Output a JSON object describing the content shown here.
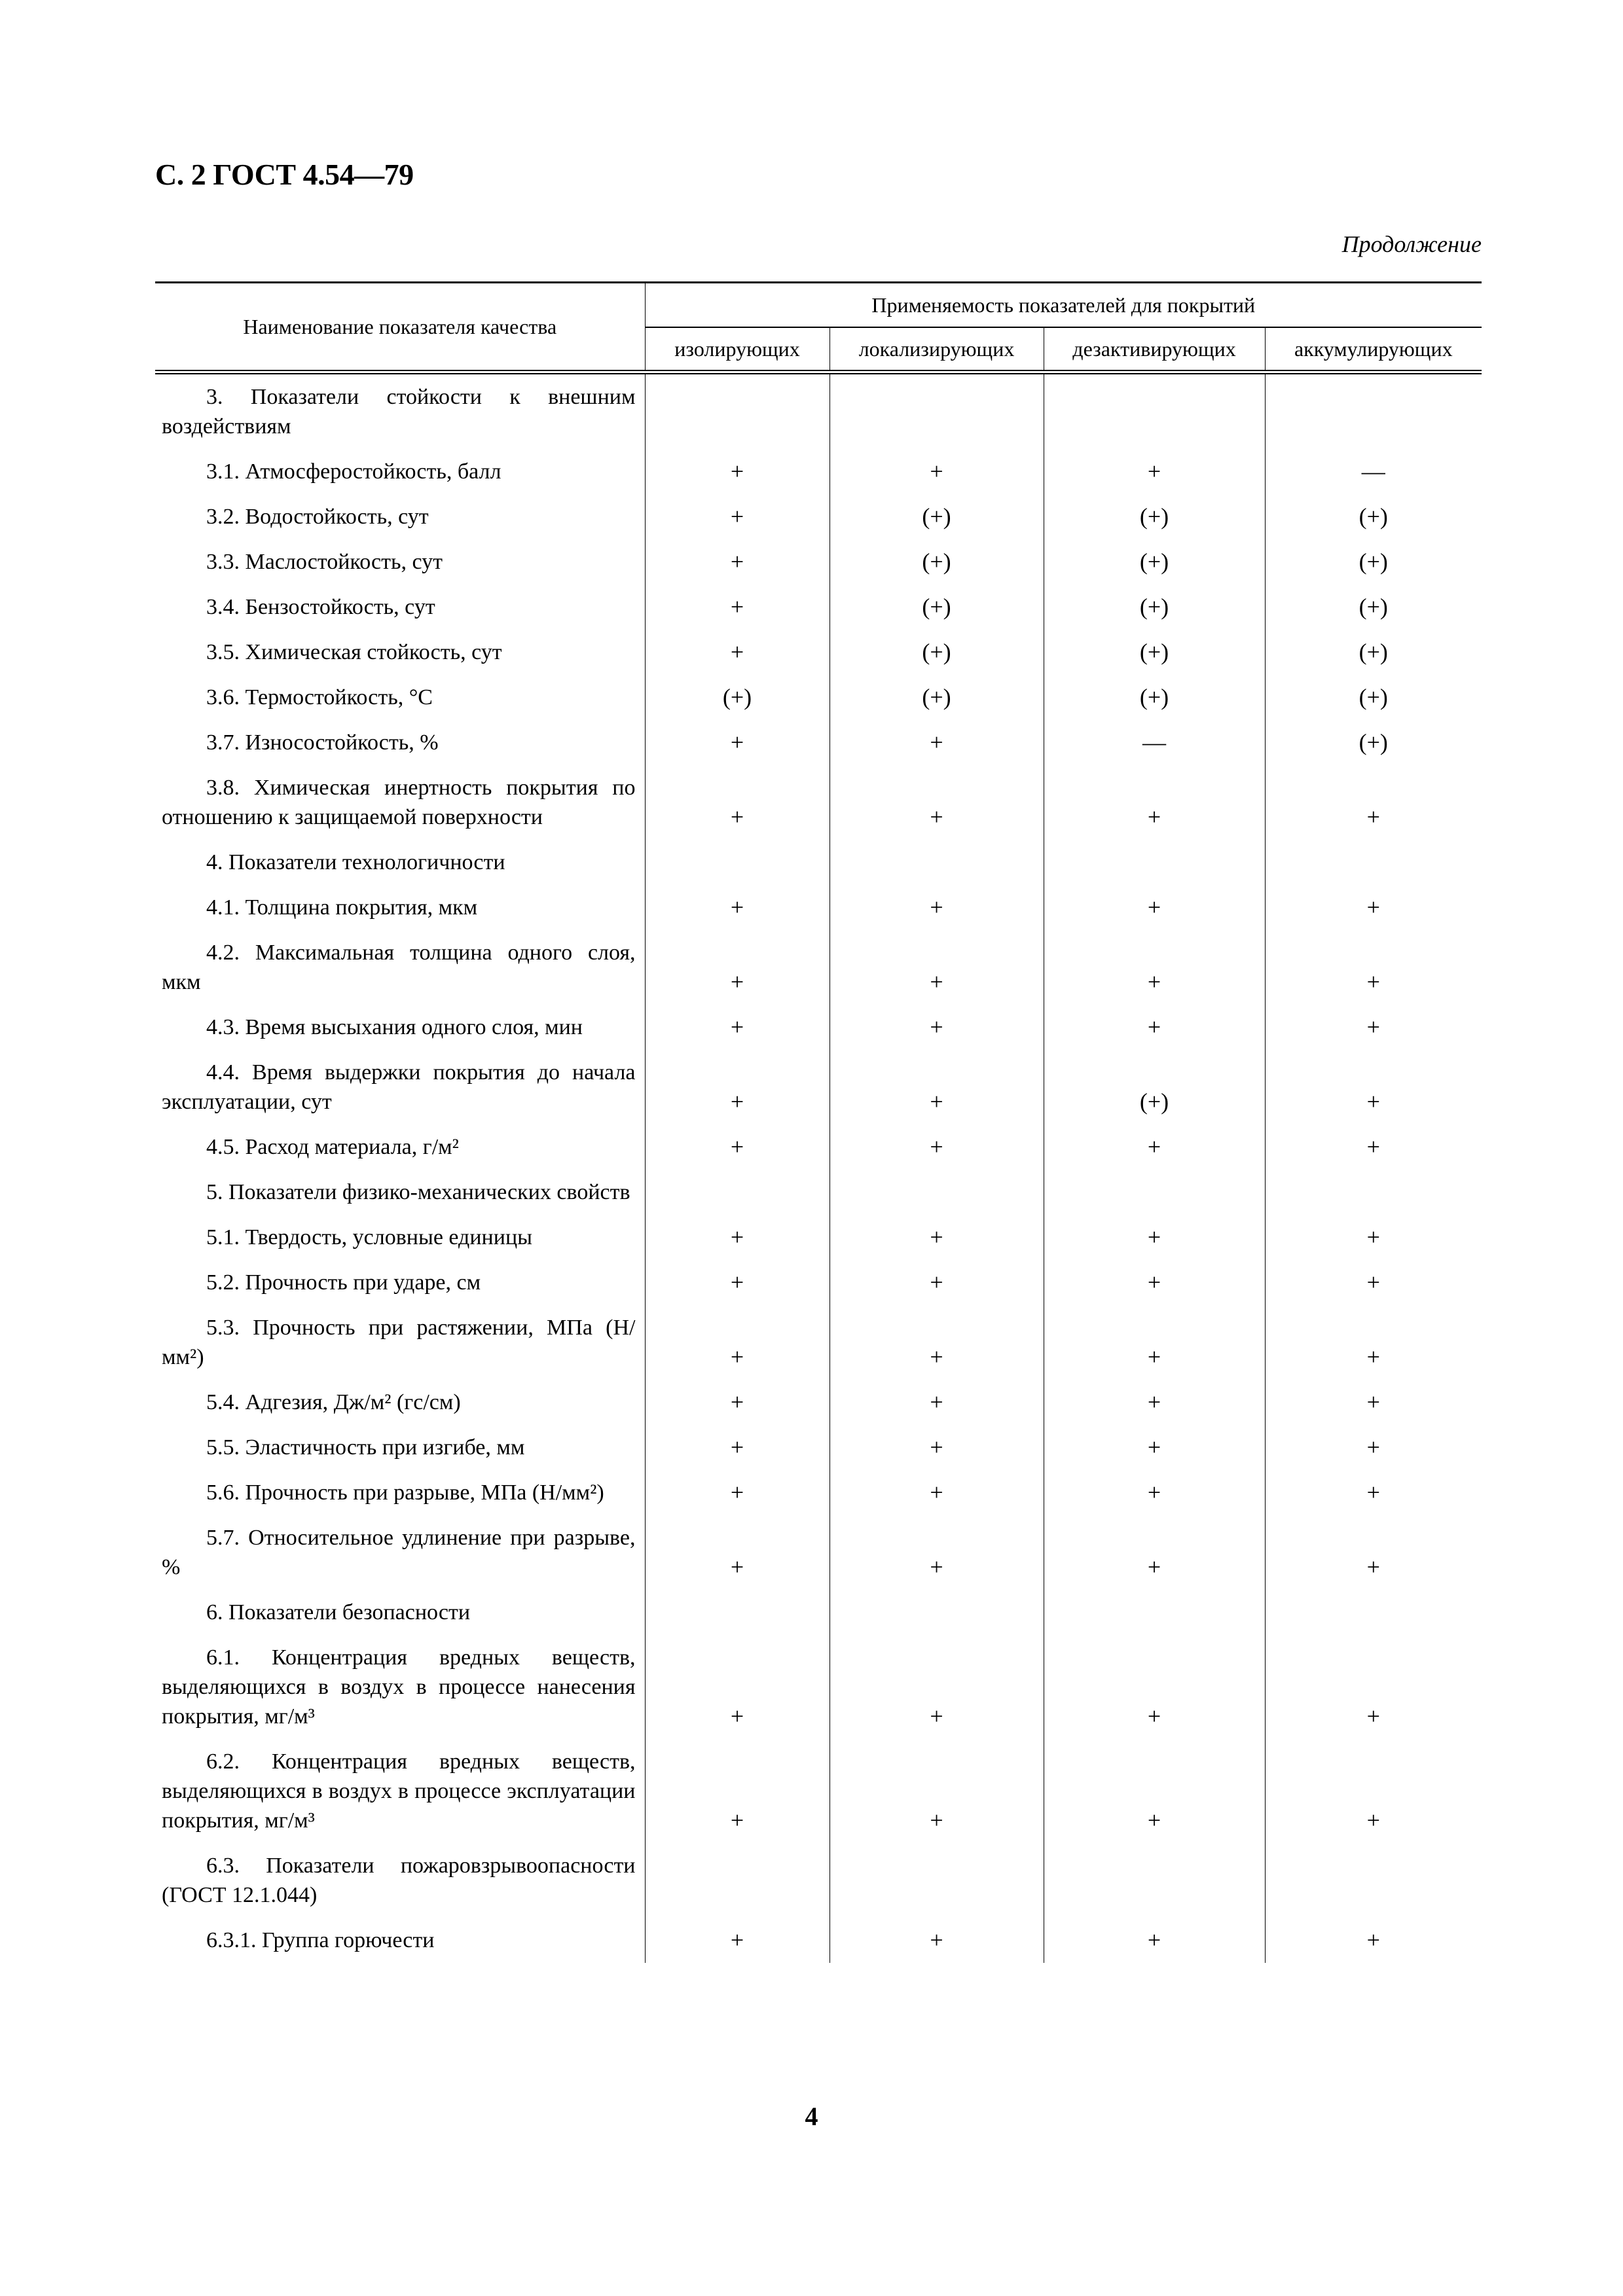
{
  "header": {
    "title": "С. 2 ГОСТ 4.54—79",
    "continuation": "Продолжение"
  },
  "table": {
    "col_name": "Наименование показателя качества",
    "col_group": "Применяемость показателей для покрытий",
    "columns": [
      "изолирующих",
      "локализирующих",
      "дезактивирующих",
      "аккумулирующих"
    ],
    "rows": [
      {
        "name": "3. Показатели стойкости к внеш­ним воздействиям",
        "values": [
          "",
          "",
          "",
          ""
        ]
      },
      {
        "name": "3.1. Атмосферостойкость, балл",
        "values": [
          "+",
          "+",
          "+",
          "—"
        ]
      },
      {
        "name": "3.2. Водостойкость, сут",
        "values": [
          "+",
          "(+)",
          "(+)",
          "(+)"
        ]
      },
      {
        "name": "3.3. Маслостойкость, сут",
        "values": [
          "+",
          "(+)",
          "(+)",
          "(+)"
        ]
      },
      {
        "name": "3.4. Бензостойкость, сут",
        "values": [
          "+",
          "(+)",
          "(+)",
          "(+)"
        ]
      },
      {
        "name": "3.5. Химическая стойкость, сут",
        "values": [
          "+",
          "(+)",
          "(+)",
          "(+)"
        ]
      },
      {
        "name": "3.6. Термостойкость, °С",
        "values": [
          "(+)",
          "(+)",
          "(+)",
          "(+)"
        ]
      },
      {
        "name": "3.7. Износостойкость, %",
        "values": [
          "+",
          "+",
          "—",
          "(+)"
        ]
      },
      {
        "name": "3.8. Химическая инертность по­крытия по отношению к защищаемой поверхности",
        "values": [
          "+",
          "+",
          "+",
          "+"
        ]
      },
      {
        "name": "4. Показатели технологичности",
        "values": [
          "",
          "",
          "",
          ""
        ]
      },
      {
        "name": "4.1. Толщина покрытия, мкм",
        "values": [
          "+",
          "+",
          "+",
          "+"
        ]
      },
      {
        "name": "4.2. Максимальная толщина одного слоя, мкм",
        "values": [
          "+",
          "+",
          "+",
          "+"
        ]
      },
      {
        "name": "4.3. Время высыхания одного слоя, мин",
        "values": [
          "+",
          "+",
          "+",
          "+"
        ]
      },
      {
        "name": "4.4. Время выдержки покрытия до начала эксплуатации, сут",
        "values": [
          "+",
          "+",
          "(+)",
          "+"
        ]
      },
      {
        "name": "4.5. Расход материала, г/м²",
        "values": [
          "+",
          "+",
          "+",
          "+"
        ]
      },
      {
        "name": "5. Показатели физико-механичес­ких свойств",
        "values": [
          "",
          "",
          "",
          ""
        ]
      },
      {
        "name": "5.1. Твердость, условные единицы",
        "values": [
          "+",
          "+",
          "+",
          "+"
        ]
      },
      {
        "name": "5.2. Прочность при ударе, см",
        "values": [
          "+",
          "+",
          "+",
          "+"
        ]
      },
      {
        "name": "5.3. Прочность при растяжении, МПа (Н/мм²)",
        "values": [
          "+",
          "+",
          "+",
          "+"
        ]
      },
      {
        "name": "5.4. Адгезия, Дж/м² (гс/см)",
        "values": [
          "+",
          "+",
          "+",
          "+"
        ]
      },
      {
        "name": "5.5. Эластичность при изгибе, мм",
        "values": [
          "+",
          "+",
          "+",
          "+"
        ]
      },
      {
        "name": "5.6. Прочность при разрыве, МПа (Н/мм²)",
        "values": [
          "+",
          "+",
          "+",
          "+"
        ]
      },
      {
        "name": "5.7. Относительное удлинение при разрыве, %",
        "values": [
          "+",
          "+",
          "+",
          "+"
        ]
      },
      {
        "name": "6. Показатели безопасности",
        "values": [
          "",
          "",
          "",
          ""
        ]
      },
      {
        "name": "6.1. Концентрация вредных ве­ществ, выделяющихся в воздух в про­цессе нанесения покрытия, мг/м³",
        "values": [
          "+",
          "+",
          "+",
          "+"
        ]
      },
      {
        "name": "6.2. Концентрация вредных ве­ществ, выделяющихся в воздух в про­цессе эксплуатации покрытия, мг/м³",
        "values": [
          "+",
          "+",
          "+",
          "+"
        ]
      },
      {
        "name": "6.3. Показатели пожаровзрыво­опасности (ГОСТ 12.1.044)",
        "values": [
          "",
          "",
          "",
          ""
        ]
      },
      {
        "name": "6.3.1. Группа горючести",
        "values": [
          "+",
          "+",
          "+",
          "+"
        ]
      }
    ]
  },
  "footer": {
    "page_number": "4"
  }
}
